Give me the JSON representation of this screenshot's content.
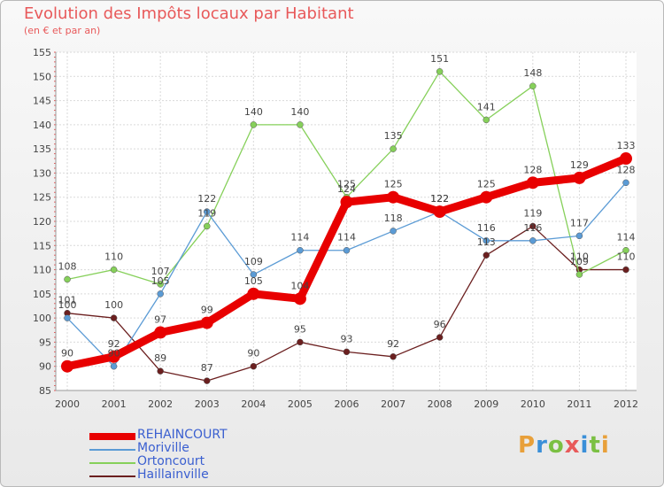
{
  "header": {
    "title": "Evolution des Impôts locaux par Habitant",
    "subtitle": "(en € et par an)"
  },
  "logo": {
    "text": "Proxiti",
    "colors": [
      "#e8a03a",
      "#3a8fd8",
      "#7bc043",
      "#e85a5a",
      "#3a8fd8",
      "#7bc043",
      "#e8a03a"
    ]
  },
  "chart_data": {
    "type": "line",
    "title": "Evolution des Impôts locaux par Habitant",
    "subtitle": "(en € et par an)",
    "xlabel": "",
    "ylabel": "",
    "x": [
      "2000",
      "2001",
      "2002",
      "2003",
      "2004",
      "2005",
      "2006",
      "2007",
      "2008",
      "2009",
      "2010",
      "2011",
      "2012"
    ],
    "ylim": [
      85,
      155
    ],
    "yticks": [
      85,
      90,
      95,
      100,
      105,
      110,
      115,
      120,
      125,
      130,
      135,
      140,
      145,
      150,
      155
    ],
    "grid": true,
    "legend": "bottom-left",
    "series": [
      {
        "name": "REHAINCOURT",
        "color": "#e80000",
        "values": [
          90,
          92,
          97,
          99,
          105,
          104,
          124,
          125,
          122,
          125,
          128,
          129,
          133
        ]
      },
      {
        "name": "Moriville",
        "color": "#5b9bd5",
        "values": [
          100,
          90,
          105,
          122,
          109,
          114,
          114,
          118,
          122,
          116,
          116,
          117,
          128
        ]
      },
      {
        "name": "Ortoncourt",
        "color": "#86d05a",
        "values": [
          108,
          110,
          107,
          119,
          140,
          140,
          125,
          135,
          151,
          141,
          148,
          109,
          114
        ]
      },
      {
        "name": "Haillainville",
        "color": "#6b1f1f",
        "values": [
          101,
          100,
          89,
          87,
          90,
          95,
          93,
          92,
          96,
          113,
          119,
          110,
          110
        ]
      }
    ]
  }
}
